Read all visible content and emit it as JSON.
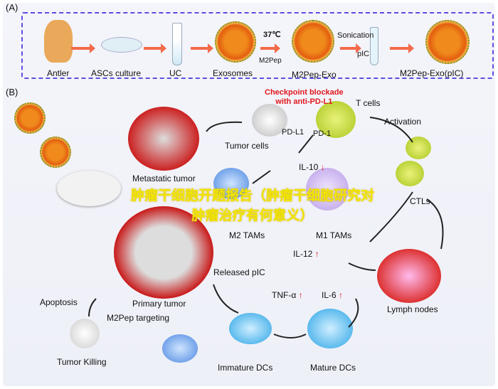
{
  "panel_a": {
    "label": "(A)",
    "steps": [
      "Antler",
      "ASCs culture",
      "UC",
      "Exosomes",
      "M2Pep-Exo",
      "M2Pep-Exo(pIC)"
    ],
    "temp": "37℃",
    "m2pep": "M2Pep",
    "sonication": "Sonication",
    "pic": "pIC"
  },
  "panel_b": {
    "label": "(B)",
    "checkpoint": "Checkpoint blockade\nwith anti-PD-L1",
    "t_cells": "T cells",
    "pdl1": "PD-L1",
    "pd1": "PD-1",
    "tumor_cells": "Tumor cells",
    "activation": "Activation",
    "metastatic": "Metastatic tumor",
    "il10": "IL-10",
    "m2tams": "M2 TAMs",
    "m1tams": "M1 TAMs",
    "ctls": "CTLs",
    "il12": "IL-12",
    "released": "Released pIC",
    "tnf": "TNF-α",
    "il6": "IL-6",
    "primary": "Primary tumor",
    "targeting": "M2Pep targeting",
    "apoptosis": "Apoptosis",
    "killing": "Tumor Killing",
    "immature": "Immature DCs",
    "mature": "Mature DCs",
    "lymph": "Lymph nodes",
    "down": "↓",
    "up": "↑"
  },
  "watermark": "肿瘤干细胞开题报告（肿瘤干细胞研究对肿瘤治疗有何意义）",
  "colors": {
    "frame": "#5b4fe0",
    "arrow": "#f36a4a",
    "red_text": "#e0161c",
    "watermark": "#f2e600"
  }
}
